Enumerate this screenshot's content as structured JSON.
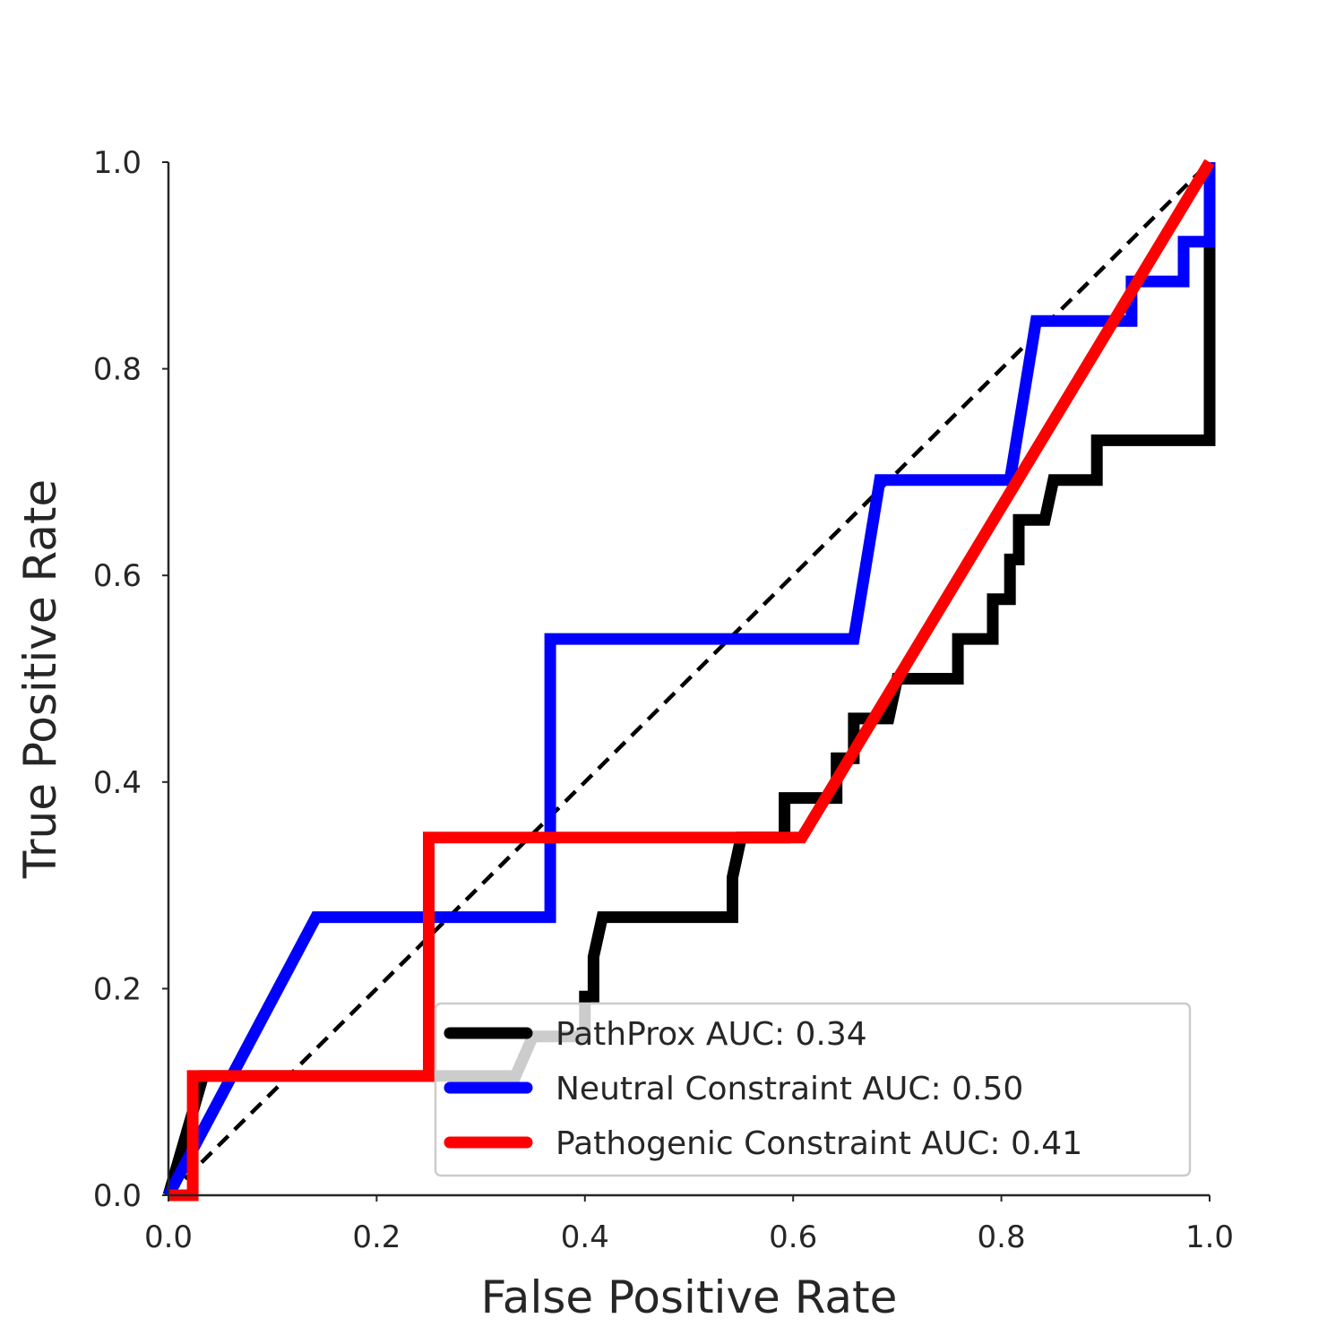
{
  "chart_data": {
    "type": "line",
    "title": "",
    "xlabel": "False Positive Rate",
    "ylabel": "True Positive Rate",
    "xlim": [
      0.0,
      1.0
    ],
    "ylim": [
      0.0,
      1.0
    ],
    "xticks": [
      "0.0",
      "0.2",
      "0.4",
      "0.6",
      "0.8",
      "1.0"
    ],
    "yticks": [
      "0.0",
      "0.2",
      "0.4",
      "0.6",
      "0.8",
      "1.0"
    ],
    "grid": false,
    "legend_position": "lower-right",
    "reference_line": {
      "x": [
        0,
        1
      ],
      "y": [
        0,
        1
      ],
      "color": "#000000",
      "style": "dashed"
    },
    "series": [
      {
        "name": "PathProx AUC:  0.34",
        "color": "#000000",
        "x": [
          0.0,
          0.0,
          0.0167,
          0.0333,
          0.0333,
          0.0333,
          0.0333,
          0.3333,
          0.35,
          0.4,
          0.4,
          0.4083,
          0.4083,
          0.4167,
          0.5417,
          0.5417,
          0.55,
          0.5917,
          0.5917,
          0.6417,
          0.6417,
          0.6583,
          0.6583,
          0.6667,
          0.6917,
          0.7,
          0.7,
          0.7333,
          0.7583,
          0.7583,
          0.7917,
          0.7917,
          0.8083,
          0.8083,
          0.8167,
          0.8167,
          0.8333,
          0.8417,
          0.85,
          0.8917,
          0.8917,
          0.9,
          0.9583,
          0.9583,
          0.9583,
          0.9583,
          0.9667,
          0.9667,
          1.0,
          1.0,
          1.0,
          1.0
        ],
        "y": [
          0.0,
          0.0,
          0.0577,
          0.1154,
          0.1154,
          0.1154,
          0.1154,
          0.1154,
          0.1538,
          0.1538,
          0.1923,
          0.1923,
          0.2308,
          0.2692,
          0.2692,
          0.3077,
          0.3462,
          0.3462,
          0.3846,
          0.3846,
          0.4231,
          0.4231,
          0.4615,
          0.4615,
          0.4615,
          0.5,
          0.5,
          0.5,
          0.5,
          0.5385,
          0.5385,
          0.5769,
          0.5769,
          0.6154,
          0.6154,
          0.6538,
          0.6538,
          0.6538,
          0.6923,
          0.6923,
          0.7308,
          0.7308,
          0.7308,
          0.7308,
          0.7308,
          0.7308,
          0.7308,
          0.7308,
          0.7308,
          0.8846,
          0.9231,
          1.0
        ]
      },
      {
        "name": "Neutral Constraint AUC:  0.50",
        "color": "#0000ff",
        "x": [
          0.0,
          0.1417,
          0.3667,
          0.3667,
          0.6583,
          0.6833,
          0.8083,
          0.8333,
          0.925,
          0.925,
          0.975,
          0.975,
          1.0,
          1.0
        ],
        "y": [
          0.0,
          0.2692,
          0.2692,
          0.5385,
          0.5385,
          0.6923,
          0.6923,
          0.8462,
          0.8462,
          0.8846,
          0.8846,
          0.9231,
          0.9231,
          1.0
        ]
      },
      {
        "name": "Pathogenic Constraint AUC:  0.41",
        "color": "#ff0000",
        "x": [
          0.0,
          0.0233,
          0.0233,
          0.25,
          0.25,
          0.6083,
          1.0
        ],
        "y": [
          0.0,
          0.0,
          0.1154,
          0.1154,
          0.3462,
          0.3462,
          1.0
        ]
      }
    ]
  }
}
